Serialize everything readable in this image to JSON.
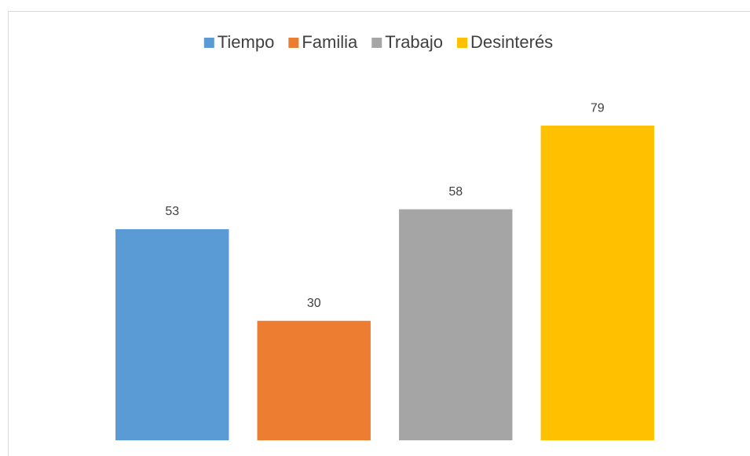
{
  "chart_data": {
    "type": "bar",
    "series": [
      {
        "name": "Tiempo",
        "color": "#5b9bd5",
        "values": [
          53
        ]
      },
      {
        "name": "Familia",
        "color": "#ed7d31",
        "values": [
          30
        ]
      },
      {
        "name": "Trabajo",
        "color": "#a5a5a5",
        "values": [
          58
        ]
      },
      {
        "name": "Desinterés",
        "color": "#ffc000",
        "values": [
          79
        ]
      }
    ],
    "ylim": [
      0,
      80
    ],
    "legend": "top"
  }
}
